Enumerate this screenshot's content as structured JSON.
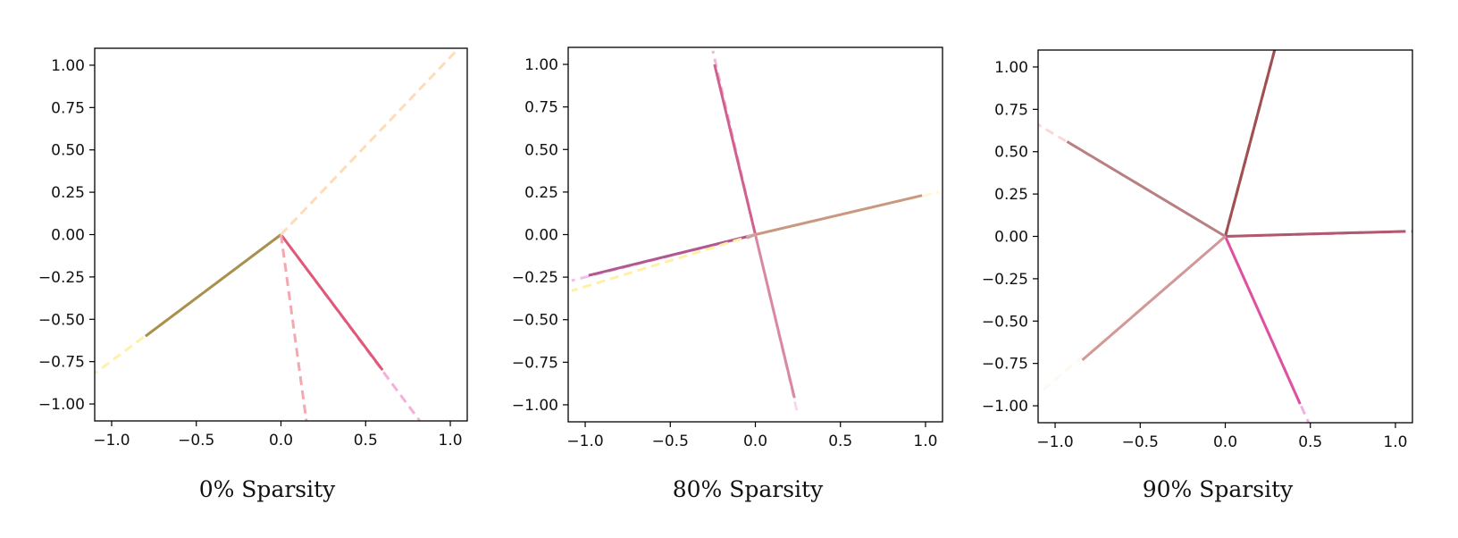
{
  "chart_data": [
    {
      "type": "line",
      "title": "0% Sparsity",
      "xlabel": "",
      "ylabel": "",
      "xlim": [
        -1.1,
        1.1
      ],
      "ylim": [
        -1.1,
        1.1
      ],
      "xticks": [
        -1.0,
        -0.5,
        0.0,
        0.5,
        1.0
      ],
      "xtick_labels": [
        "−1.0",
        "−0.5",
        "0.0",
        "0.5",
        "1.0"
      ],
      "yticks": [
        1.0,
        0.75,
        0.5,
        0.25,
        0.0,
        -0.25,
        -0.5,
        -0.75,
        -1.0
      ],
      "ytick_labels": [
        "1.00",
        "0.75",
        "0.50",
        "0.25",
        "0.00",
        "−0.25",
        "−0.50",
        "−0.75",
        "−1.00"
      ],
      "grid": false,
      "vectors": [
        {
          "solid_to": [
            -0.8,
            -0.6
          ],
          "dashed_to": [
            -1.1,
            -0.82
          ],
          "solid_color": "#a89050",
          "dashed_color": "#fff2a8"
        },
        {
          "solid_to": [
            0.6,
            -0.8
          ],
          "dashed_to": [
            0.82,
            -1.1
          ],
          "solid_color": "#e05878",
          "dashed_color": "#f4b0d8"
        },
        {
          "solid_to": [
            0.0,
            0.0
          ],
          "dashed_to": [
            0.15,
            -1.1
          ],
          "solid_color": "#f0a0a8",
          "dashed_color": "#f4a8b0"
        },
        {
          "solid_to": [
            0.0,
            0.0
          ],
          "dashed_to": [
            1.05,
            1.1
          ],
          "solid_color": "#ffe0c0",
          "dashed_color": "#ffdcb8"
        }
      ]
    },
    {
      "type": "line",
      "title": "80% Sparsity",
      "xlabel": "",
      "ylabel": "",
      "xlim": [
        -1.1,
        1.1
      ],
      "ylim": [
        -1.1,
        1.1
      ],
      "xticks": [
        -1.0,
        -0.5,
        0.0,
        0.5,
        1.0
      ],
      "xtick_labels": [
        "−1.0",
        "−0.5",
        "0.0",
        "0.5",
        "1.0"
      ],
      "yticks": [
        1.0,
        0.75,
        0.5,
        0.25,
        0.0,
        -0.25,
        -0.5,
        -0.75,
        -1.0
      ],
      "ytick_labels": [
        "1.00",
        "0.75",
        "0.50",
        "0.25",
        "0.00",
        "−0.25",
        "−0.50",
        "−0.75",
        "−1.00"
      ],
      "grid": false,
      "vectors": [
        {
          "solid_to": [
            -0.24,
            1.0
          ],
          "dashed_to": [
            -0.25,
            1.08
          ],
          "solid_color": "#d06090",
          "dashed_color": "#f0b8d8"
        },
        {
          "solid_to": [
            0.23,
            -0.96
          ],
          "dashed_to": [
            0.25,
            -1.06
          ],
          "solid_color": "#d888a0",
          "dashed_color": "#f8d8f0"
        },
        {
          "solid_to": [
            0.98,
            0.23
          ],
          "dashed_to": [
            1.08,
            0.25
          ],
          "solid_color": "#c89880",
          "dashed_color": "#fff8d0"
        },
        {
          "solid_to": [
            -0.98,
            -0.24
          ],
          "dashed_to": [
            -1.08,
            -0.27
          ],
          "solid_color": "#b05890",
          "dashed_color": "#f0c0e8"
        },
        {
          "solid_to": [
            -0.05,
            -0.02
          ],
          "dashed_to": [
            -1.08,
            -0.33
          ],
          "solid_color": "#d0a0a0",
          "dashed_color": "#fff0a8"
        }
      ]
    },
    {
      "type": "line",
      "title": "90% Sparsity",
      "xlabel": "",
      "ylabel": "",
      "xlim": [
        -1.1,
        1.1
      ],
      "ylim": [
        -1.1,
        1.1
      ],
      "xticks": [
        -1.0,
        -0.5,
        0.0,
        0.5,
        1.0
      ],
      "xtick_labels": [
        "−1.0",
        "−0.5",
        "0.0",
        "0.5",
        "1.0"
      ],
      "yticks": [
        1.0,
        0.75,
        0.5,
        0.25,
        0.0,
        -0.25,
        -0.5,
        -0.75,
        -1.0
      ],
      "ytick_labels": [
        "1.00",
        "0.75",
        "0.50",
        "0.25",
        "0.00",
        "−0.25",
        "−0.50",
        "−0.75",
        "−1.00"
      ],
      "grid": false,
      "vectors": [
        {
          "solid_to": [
            0.29,
            1.1
          ],
          "dashed_to": [
            0.29,
            1.1
          ],
          "solid_color": "#a05050",
          "dashed_color": "#a05050"
        },
        {
          "solid_to": [
            -0.93,
            0.56
          ],
          "dashed_to": [
            -1.1,
            0.66
          ],
          "solid_color": "#b88080",
          "dashed_color": "#fbd8d8"
        },
        {
          "solid_to": [
            1.06,
            0.03
          ],
          "dashed_to": [
            1.1,
            0.03
          ],
          "solid_color": "#b05870",
          "dashed_color": "#e8a0b0"
        },
        {
          "solid_to": [
            0.44,
            -0.99
          ],
          "dashed_to": [
            0.49,
            -1.1
          ],
          "solid_color": "#e050a0",
          "dashed_color": "#f0b0e8"
        },
        {
          "solid_to": [
            -0.84,
            -0.73
          ],
          "dashed_to": [
            -1.1,
            -0.93
          ],
          "solid_color": "#d09898",
          "dashed_color": "#fff8f0"
        }
      ]
    }
  ]
}
